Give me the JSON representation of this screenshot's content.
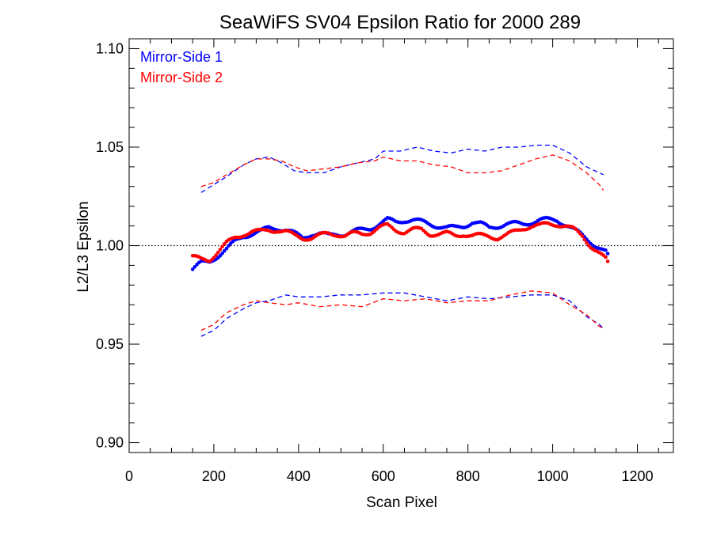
{
  "chart_data": {
    "type": "scatter",
    "title": "SeaWiFS SV04 Epsilon Ratio for 2000 289",
    "xlabel": "Scan Pixel",
    "ylabel": "L2/L3 Epsilon",
    "xlim": [
      0,
      1285
    ],
    "ylim": [
      0.895,
      1.105
    ],
    "x_ticks": [
      {
        "value": 0,
        "label": "0"
      },
      {
        "value": 200,
        "label": "200"
      },
      {
        "value": 400,
        "label": "400"
      },
      {
        "value": 600,
        "label": "600"
      },
      {
        "value": 800,
        "label": "800"
      },
      {
        "value": 1000,
        "label": "1000"
      },
      {
        "value": 1200,
        "label": "1200"
      }
    ],
    "x_minor_step": 50,
    "y_ticks": [
      {
        "value": 0.9,
        "label": "0.90"
      },
      {
        "value": 0.95,
        "label": "0.95"
      },
      {
        "value": 1.0,
        "label": "1.00"
      },
      {
        "value": 1.05,
        "label": "1.05"
      },
      {
        "value": 1.1,
        "label": "1.10"
      }
    ],
    "y_minor_step": 0.01,
    "reference_line": {
      "y": 1.0,
      "style": "dotted"
    },
    "legend": {
      "placement": "top-left",
      "entries": [
        {
          "label": "Mirror-Side 1",
          "color": "#0000ff"
        },
        {
          "label": "Mirror-Side 2",
          "color": "#ff0000"
        }
      ]
    },
    "series": [
      {
        "name": "Mirror-Side 1",
        "color": "#0000ff",
        "mean_points": [
          [
            150,
            0.988
          ],
          [
            170,
            0.991
          ],
          [
            190,
            0.992
          ],
          [
            210,
            0.995
          ],
          [
            230,
            0.998
          ],
          [
            250,
            1.002
          ],
          [
            270,
            1.005
          ],
          [
            290,
            1.006
          ],
          [
            310,
            1.007
          ],
          [
            330,
            1.009
          ],
          [
            350,
            1.009
          ],
          [
            370,
            1.008
          ],
          [
            390,
            1.006
          ],
          [
            410,
            1.004
          ],
          [
            430,
            1.006
          ],
          [
            450,
            1.006
          ],
          [
            470,
            1.005
          ],
          [
            490,
            1.006
          ],
          [
            510,
            1.006
          ],
          [
            530,
            1.007
          ],
          [
            550,
            1.008
          ],
          [
            570,
            1.009
          ],
          [
            590,
            1.011
          ],
          [
            610,
            1.013
          ],
          [
            630,
            1.012
          ],
          [
            650,
            1.013
          ],
          [
            670,
            1.013
          ],
          [
            690,
            1.012
          ],
          [
            710,
            1.011
          ],
          [
            730,
            1.01
          ],
          [
            750,
            1.009
          ],
          [
            770,
            1.009
          ],
          [
            790,
            1.01
          ],
          [
            810,
            1.012
          ],
          [
            830,
            1.011
          ],
          [
            850,
            1.009
          ],
          [
            870,
            1.01
          ],
          [
            890,
            1.011
          ],
          [
            910,
            1.011
          ],
          [
            930,
            1.011
          ],
          [
            950,
            1.012
          ],
          [
            970,
            1.013
          ],
          [
            990,
            1.013
          ],
          [
            1010,
            1.013
          ],
          [
            1030,
            1.011
          ],
          [
            1050,
            1.008
          ],
          [
            1070,
            1.005
          ],
          [
            1090,
            1.002
          ],
          [
            1110,
            0.999
          ],
          [
            1130,
            0.996
          ]
        ],
        "upper_bound": [
          [
            170,
            1.027
          ],
          [
            200,
            1.031
          ],
          [
            230,
            1.035
          ],
          [
            270,
            1.041
          ],
          [
            300,
            1.044
          ],
          [
            330,
            1.045
          ],
          [
            360,
            1.042
          ],
          [
            390,
            1.038
          ],
          [
            420,
            1.037
          ],
          [
            460,
            1.037
          ],
          [
            500,
            1.04
          ],
          [
            540,
            1.042
          ],
          [
            580,
            1.044
          ],
          [
            600,
            1.048
          ],
          [
            640,
            1.048
          ],
          [
            680,
            1.05
          ],
          [
            720,
            1.048
          ],
          [
            760,
            1.047
          ],
          [
            800,
            1.049
          ],
          [
            840,
            1.048
          ],
          [
            880,
            1.05
          ],
          [
            920,
            1.05
          ],
          [
            960,
            1.051
          ],
          [
            1000,
            1.051
          ],
          [
            1040,
            1.047
          ],
          [
            1080,
            1.04
          ],
          [
            1110,
            1.037
          ],
          [
            1120,
            1.036
          ]
        ],
        "lower_bound": [
          [
            170,
            0.954
          ],
          [
            200,
            0.957
          ],
          [
            230,
            0.963
          ],
          [
            270,
            0.968
          ],
          [
            300,
            0.971
          ],
          [
            330,
            0.972
          ],
          [
            370,
            0.975
          ],
          [
            400,
            0.974
          ],
          [
            450,
            0.974
          ],
          [
            500,
            0.975
          ],
          [
            550,
            0.975
          ],
          [
            600,
            0.976
          ],
          [
            650,
            0.976
          ],
          [
            700,
            0.974
          ],
          [
            750,
            0.972
          ],
          [
            800,
            0.974
          ],
          [
            850,
            0.973
          ],
          [
            900,
            0.974
          ],
          [
            950,
            0.975
          ],
          [
            1000,
            0.975
          ],
          [
            1040,
            0.972
          ],
          [
            1080,
            0.964
          ],
          [
            1110,
            0.96
          ],
          [
            1120,
            0.958
          ]
        ]
      },
      {
        "name": "Mirror-Side 2",
        "color": "#ff0000",
        "mean_points": [
          [
            150,
            0.994
          ],
          [
            170,
            0.993
          ],
          [
            190,
            0.993
          ],
          [
            210,
            0.997
          ],
          [
            230,
            1.001
          ],
          [
            250,
            1.004
          ],
          [
            270,
            1.006
          ],
          [
            290,
            1.007
          ],
          [
            310,
            1.007
          ],
          [
            330,
            1.008
          ],
          [
            350,
            1.008
          ],
          [
            370,
            1.007
          ],
          [
            390,
            1.005
          ],
          [
            410,
            1.004
          ],
          [
            430,
            1.004
          ],
          [
            450,
            1.005
          ],
          [
            470,
            1.006
          ],
          [
            490,
            1.006
          ],
          [
            510,
            1.005
          ],
          [
            530,
            1.006
          ],
          [
            550,
            1.006
          ],
          [
            570,
            1.007
          ],
          [
            590,
            1.009
          ],
          [
            610,
            1.01
          ],
          [
            630,
            1.008
          ],
          [
            650,
            1.007
          ],
          [
            670,
            1.008
          ],
          [
            690,
            1.008
          ],
          [
            710,
            1.006
          ],
          [
            730,
            1.006
          ],
          [
            750,
            1.006
          ],
          [
            770,
            1.005
          ],
          [
            790,
            1.006
          ],
          [
            810,
            1.005
          ],
          [
            830,
            1.005
          ],
          [
            850,
            1.005
          ],
          [
            870,
            1.004
          ],
          [
            890,
            1.005
          ],
          [
            910,
            1.007
          ],
          [
            930,
            1.009
          ],
          [
            950,
            1.01
          ],
          [
            970,
            1.01
          ],
          [
            990,
            1.011
          ],
          [
            1010,
            1.011
          ],
          [
            1030,
            1.01
          ],
          [
            1050,
            1.008
          ],
          [
            1070,
            1.005
          ],
          [
            1090,
            1.0
          ],
          [
            1110,
            0.996
          ],
          [
            1130,
            0.992
          ]
        ],
        "upper_bound": [
          [
            170,
            1.03
          ],
          [
            200,
            1.032
          ],
          [
            230,
            1.036
          ],
          [
            270,
            1.041
          ],
          [
            300,
            1.044
          ],
          [
            330,
            1.044
          ],
          [
            360,
            1.043
          ],
          [
            390,
            1.04
          ],
          [
            420,
            1.038
          ],
          [
            460,
            1.039
          ],
          [
            500,
            1.04
          ],
          [
            540,
            1.042
          ],
          [
            580,
            1.043
          ],
          [
            600,
            1.045
          ],
          [
            640,
            1.043
          ],
          [
            680,
            1.043
          ],
          [
            720,
            1.041
          ],
          [
            760,
            1.04
          ],
          [
            800,
            1.037
          ],
          [
            840,
            1.037
          ],
          [
            880,
            1.038
          ],
          [
            920,
            1.041
          ],
          [
            960,
            1.044
          ],
          [
            1000,
            1.046
          ],
          [
            1040,
            1.043
          ],
          [
            1080,
            1.037
          ],
          [
            1110,
            1.031
          ],
          [
            1120,
            1.028
          ]
        ],
        "lower_bound": [
          [
            170,
            0.957
          ],
          [
            200,
            0.96
          ],
          [
            230,
            0.966
          ],
          [
            270,
            0.97
          ],
          [
            300,
            0.972
          ],
          [
            330,
            0.971
          ],
          [
            370,
            0.97
          ],
          [
            400,
            0.971
          ],
          [
            450,
            0.969
          ],
          [
            500,
            0.97
          ],
          [
            550,
            0.969
          ],
          [
            600,
            0.973
          ],
          [
            650,
            0.972
          ],
          [
            700,
            0.973
          ],
          [
            750,
            0.971
          ],
          [
            800,
            0.972
          ],
          [
            850,
            0.972
          ],
          [
            900,
            0.975
          ],
          [
            950,
            0.977
          ],
          [
            1000,
            0.976
          ],
          [
            1040,
            0.97
          ],
          [
            1080,
            0.965
          ],
          [
            1110,
            0.959
          ],
          [
            1120,
            0.958
          ]
        ]
      }
    ]
  }
}
